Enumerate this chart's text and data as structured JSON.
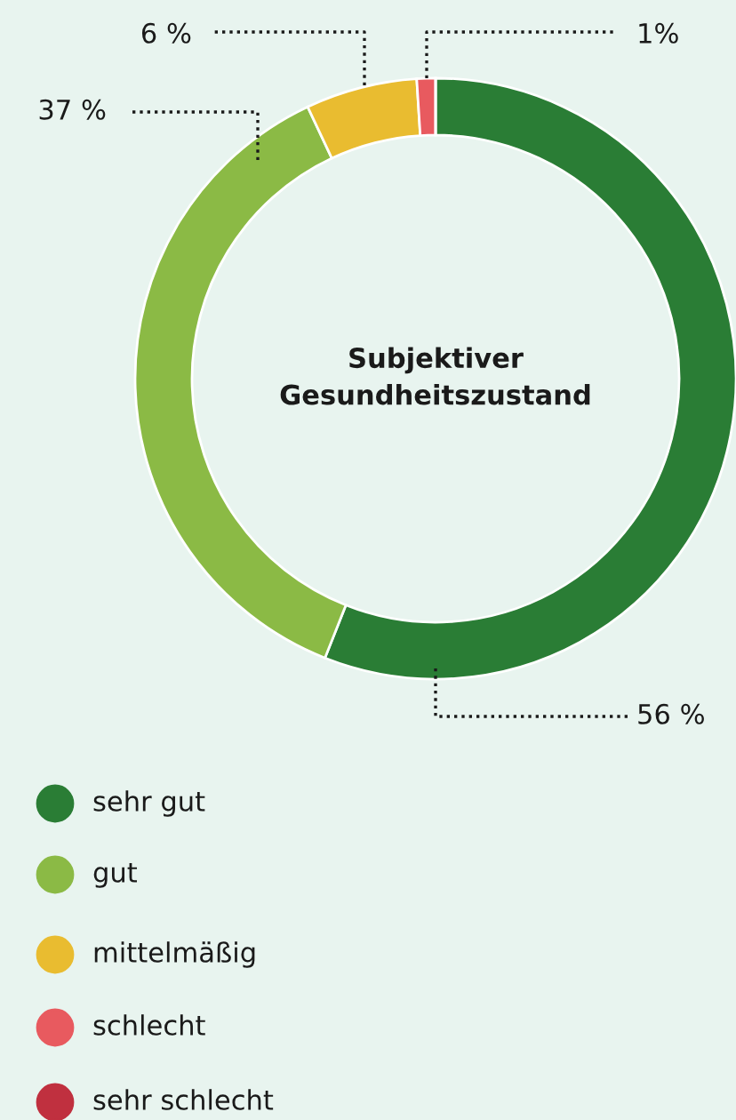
{
  "chart_data": {
    "type": "donut",
    "title": "Subjektiver\nGesundheitszustand",
    "categories": [
      "sehr gut",
      "gut",
      "mittelmäßig",
      "schlecht",
      "sehr schlecht"
    ],
    "values": [
      56,
      37,
      6,
      1,
      0
    ],
    "colors": [
      "#2a7d35",
      "#8bba45",
      "#e9bc30",
      "#e85a5f",
      "#c0303f"
    ],
    "value_labels": [
      "56 %",
      "37 %",
      "6 %",
      "1%",
      null
    ],
    "legend": "bottom"
  }
}
